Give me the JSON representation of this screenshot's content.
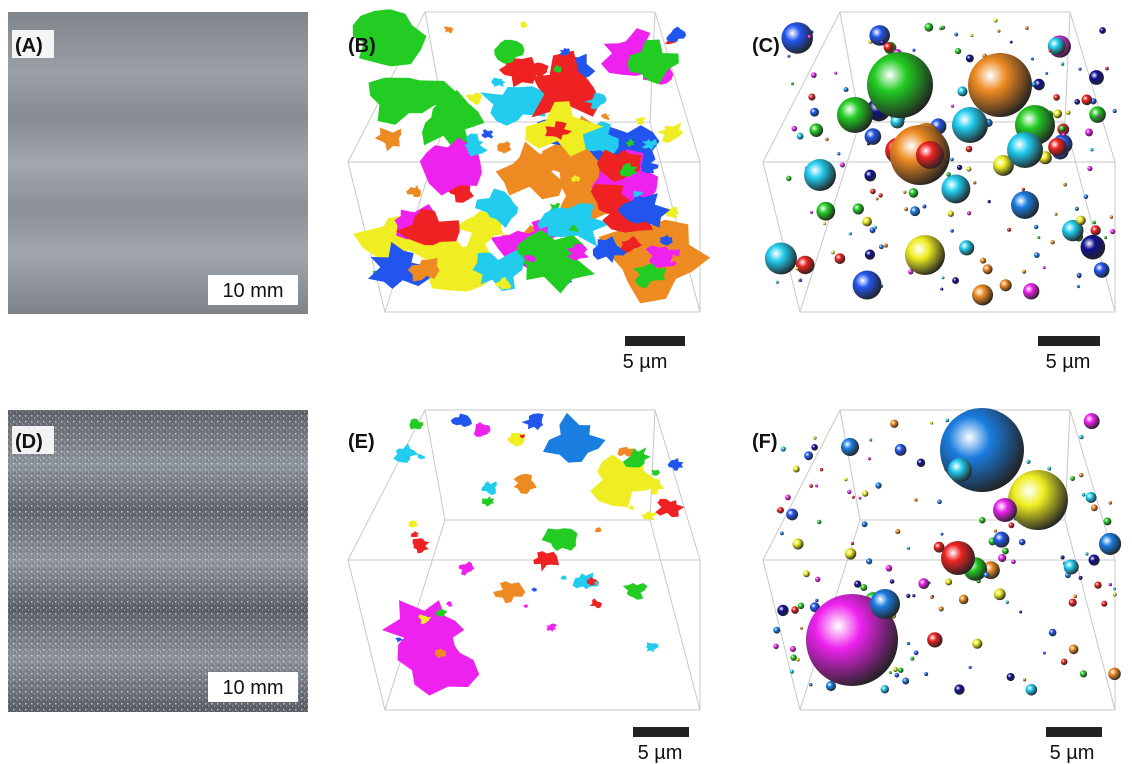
{
  "panels": [
    {
      "label": "(A)",
      "scale_bar": "10 mm"
    },
    {
      "label": "(B)",
      "scale_bar": "5 µm"
    },
    {
      "label": "(C)",
      "scale_bar": "5 µm"
    },
    {
      "label": "(D)",
      "scale_bar": "10 mm"
    },
    {
      "label": "(E)",
      "scale_bar": "5 µm"
    },
    {
      "label": "(F)",
      "scale_bar": "5 µm"
    }
  ]
}
